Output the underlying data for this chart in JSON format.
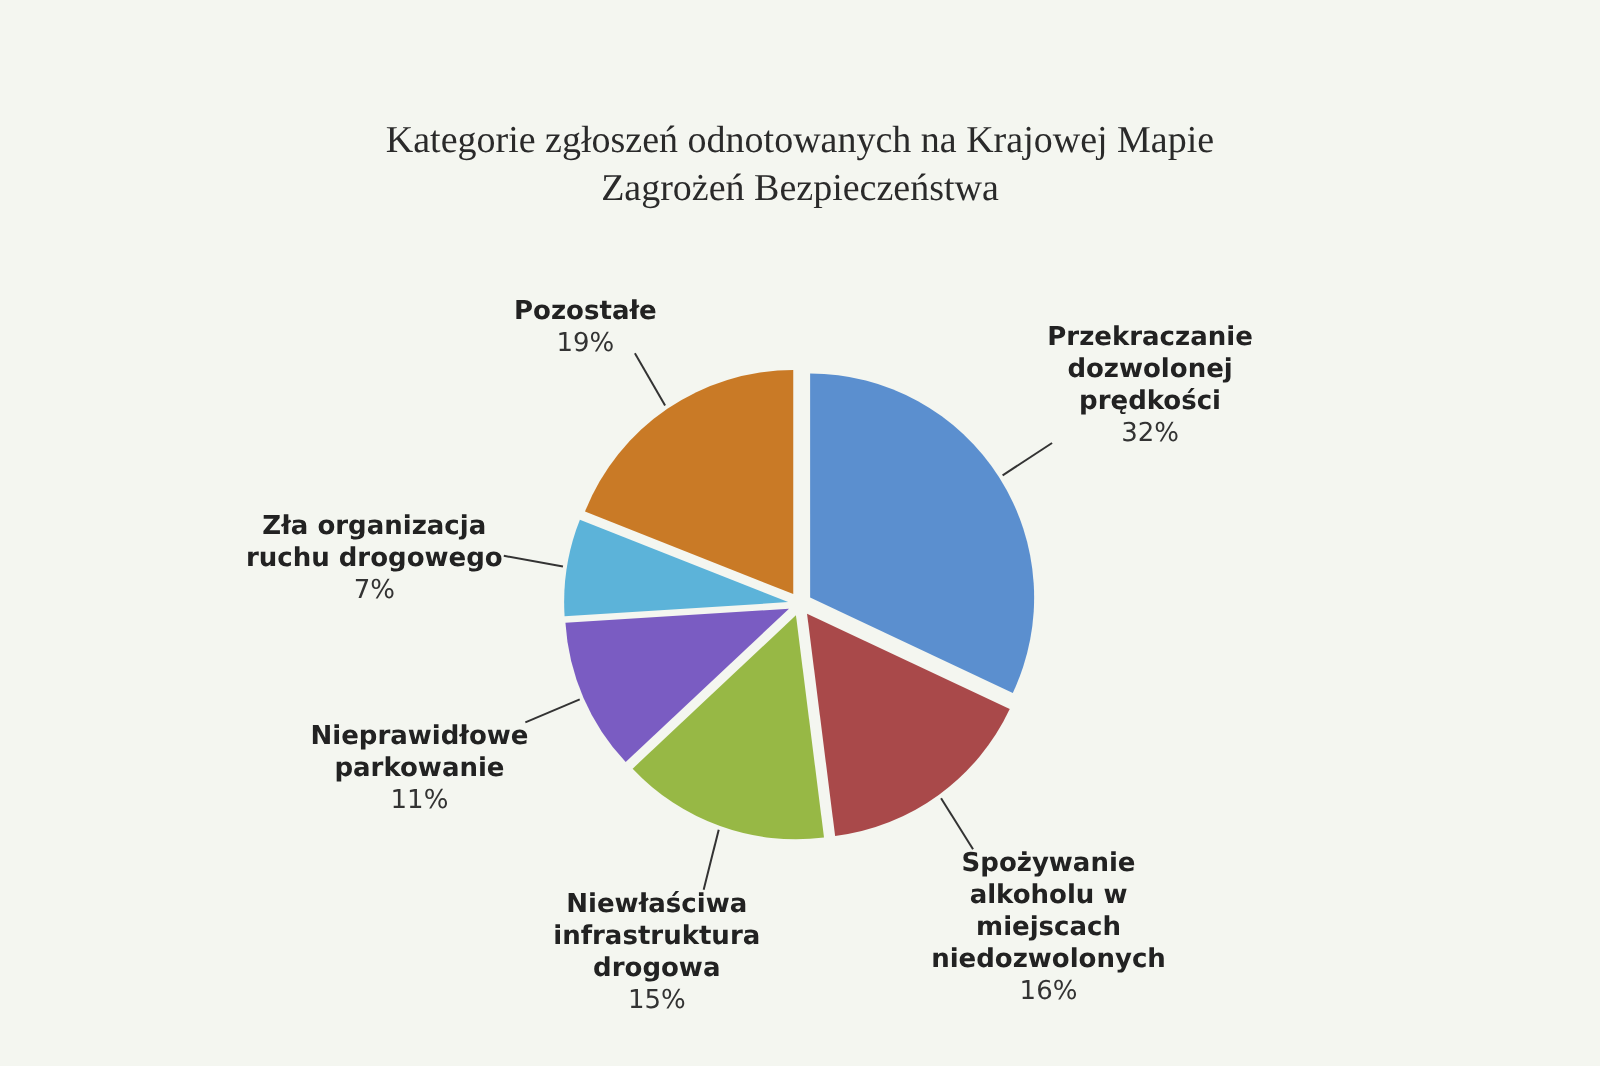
{
  "chart_data": {
    "type": "pie",
    "title": "Kategorie zgłoszeń odnotowanych na Krajowej Mapie Zagrożeń Bezpieczeństwa",
    "categories": [
      "Przekraczanie dozwolonej prędkości",
      "Spożywanie alkoholu w miejscach niedozwolonych",
      "Niewłaściwa infrastruktura drogowa",
      "Nieprawidłowe parkowanie",
      "Zła organizacja ruchu drogowego",
      "Pozostałe"
    ],
    "values": [
      32,
      16,
      15,
      11,
      7,
      19
    ],
    "colors": [
      "#5b8fcf",
      "#a9494a",
      "#97b845",
      "#7a5cc2",
      "#5cb3d9",
      "#c97a26"
    ],
    "value_labels": [
      "32%",
      "16%",
      "15%",
      "11%",
      "7%",
      "19%"
    ]
  }
}
